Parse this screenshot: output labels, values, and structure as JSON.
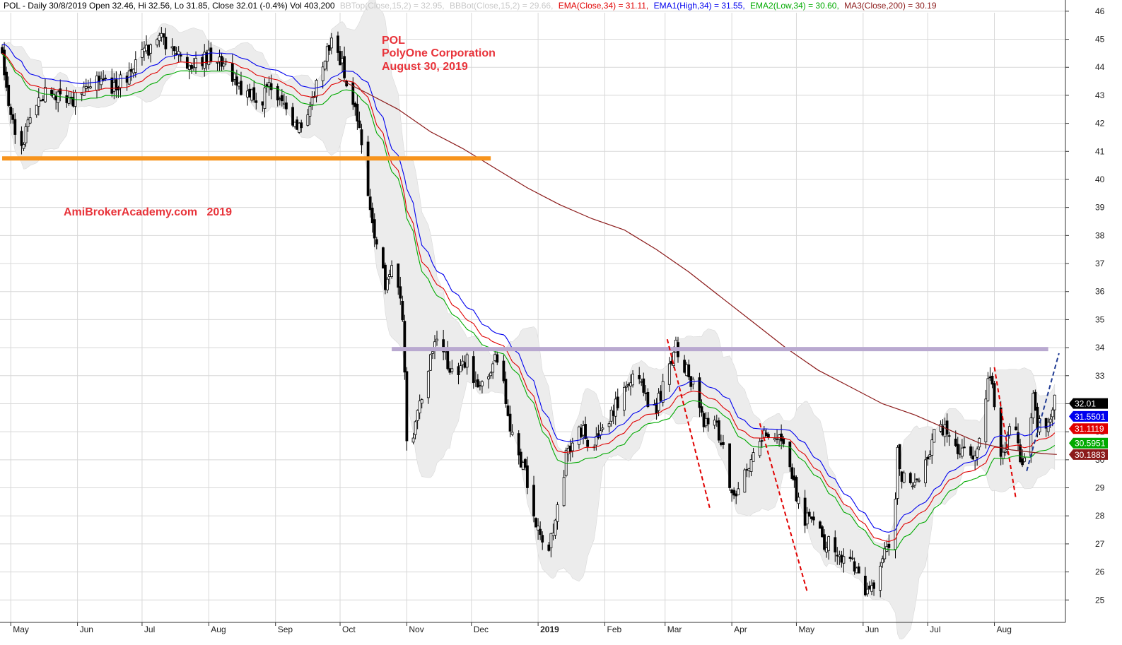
{
  "header": {
    "title": "POL - Daily 30/8/2019 Open 32.46, Hi 32.56, Lo 31.85, Close 32.01 (-0.4%) Vol 403,200",
    "bbtop": "BBTop(Close,15,2) = 32.95,",
    "bbbot": "BBBot(Close,15,2) = 29.66,",
    "ema": "EMA(Close,34) = 31.11,",
    "ema1": "EMA1(High,34) = 31.55,",
    "ema2": "EMA2(Low,34) = 30.60,",
    "ma3": "MA3(Close,200) = 30.19"
  },
  "annotations": {
    "ticker": "POL",
    "company": "PolyOne Corporation",
    "date": "August 30, 2019",
    "watermark": "AmiBrokerAcademy.com   2019"
  },
  "colors": {
    "candle": "#000000",
    "ema_close": "#e00000",
    "ema_high": "#0000ee",
    "ema_low": "#00aa00",
    "ma200": "#8b1a1a",
    "bollinger_fill": "#ececec",
    "support": "#f7941d",
    "resistance": "#b9a9d0",
    "trend_down": "#e00000",
    "trend_up": "#1f3a93",
    "bbtop_text": "#c8c8c8",
    "grid": "#d8d8d8"
  },
  "badges": [
    {
      "label": "32.01",
      "value": 32.01,
      "color": "#000000"
    },
    {
      "label": "31.5501",
      "value": 31.5501,
      "color": "#0000ee"
    },
    {
      "label": "31.1119",
      "value": 31.1119,
      "color": "#e00000"
    },
    {
      "label": "30.5951",
      "value": 30.5951,
      "color": "#00aa00"
    },
    {
      "label": "30.1883",
      "value": 30.1883,
      "color": "#8b1a1a"
    }
  ],
  "chart_data": {
    "type": "candlestick",
    "ylim": [
      24.2,
      46.4
    ],
    "yticks": [
      25,
      26,
      27,
      28,
      29,
      30,
      31,
      32,
      33,
      34,
      35,
      36,
      37,
      38,
      39,
      40,
      41,
      42,
      43,
      44,
      45,
      46
    ],
    "grid": true,
    "x_month_labels": [
      {
        "label": "May",
        "day": 0,
        "bold": false
      },
      {
        "label": "Jun",
        "day": 31,
        "bold": false
      },
      {
        "label": "Jul",
        "day": 61,
        "bold": false
      },
      {
        "label": "Aug",
        "day": 92,
        "bold": false
      },
      {
        "label": "Sep",
        "day": 123,
        "bold": false
      },
      {
        "label": "Oct",
        "day": 153,
        "bold": false
      },
      {
        "label": "Nov",
        "day": 184,
        "bold": false
      },
      {
        "label": "Dec",
        "day": 214,
        "bold": false
      },
      {
        "label": "2019",
        "day": 245,
        "bold": true
      },
      {
        "label": "Feb",
        "day": 276,
        "bold": false
      },
      {
        "label": "Mar",
        "day": 304,
        "bold": false
      },
      {
        "label": "Apr",
        "day": 335,
        "bold": false
      },
      {
        "label": "May",
        "day": 365,
        "bold": false
      },
      {
        "label": "Jun",
        "day": 396,
        "bold": false
      },
      {
        "label": "Jul",
        "day": 426,
        "bold": false
      },
      {
        "label": "Aug",
        "day": 457,
        "bold": false
      }
    ],
    "x_range_days": [
      -5,
      490
    ],
    "close_path": [
      [
        -4,
        44.6
      ],
      [
        0,
        42.2
      ],
      [
        5,
        41.0
      ],
      [
        10,
        42.6
      ],
      [
        18,
        43.2
      ],
      [
        25,
        42.7
      ],
      [
        32,
        43.0
      ],
      [
        40,
        43.6
      ],
      [
        48,
        43.3
      ],
      [
        55,
        43.8
      ],
      [
        62,
        44.5
      ],
      [
        70,
        45.1
      ],
      [
        78,
        44.3
      ],
      [
        85,
        44.1
      ],
      [
        92,
        44.4
      ],
      [
        100,
        44.0
      ],
      [
        108,
        43.2
      ],
      [
        116,
        42.8
      ],
      [
        122,
        43.4
      ],
      [
        128,
        42.4
      ],
      [
        134,
        41.9
      ],
      [
        140,
        42.8
      ],
      [
        146,
        44.4
      ],
      [
        150,
        45.1
      ],
      [
        155,
        43.8
      ],
      [
        158,
        43.1
      ],
      [
        162,
        41.9
      ],
      [
        165,
        40.3
      ],
      [
        168,
        38.3
      ],
      [
        171,
        37.4
      ],
      [
        174,
        36.2
      ],
      [
        177,
        36.9
      ],
      [
        180,
        36.0
      ],
      [
        182,
        35.0
      ],
      [
        184,
        30.8
      ],
      [
        186,
        30.4
      ],
      [
        188,
        31.5
      ],
      [
        191,
        32.4
      ],
      [
        195,
        33.6
      ],
      [
        199,
        34.6
      ],
      [
        203,
        33.3
      ],
      [
        207,
        32.9
      ],
      [
        212,
        33.6
      ],
      [
        216,
        32.8
      ],
      [
        220,
        32.6
      ],
      [
        224,
        33.5
      ],
      [
        228,
        33.8
      ],
      [
        230,
        32.0
      ],
      [
        233,
        30.8
      ],
      [
        236,
        30.0
      ],
      [
        239,
        29.5
      ],
      [
        241,
        28.4
      ],
      [
        244,
        27.8
      ],
      [
        247,
        27.2
      ],
      [
        249,
        26.5
      ],
      [
        251,
        27.2
      ],
      [
        253,
        28.0
      ],
      [
        256,
        29.0
      ],
      [
        258,
        30.1
      ],
      [
        262,
        30.8
      ],
      [
        266,
        31.0
      ],
      [
        270,
        30.4
      ],
      [
        275,
        30.9
      ],
      [
        279,
        31.6
      ],
      [
        283,
        32.3
      ],
      [
        287,
        32.7
      ],
      [
        291,
        33.1
      ],
      [
        294,
        32.3
      ],
      [
        297,
        31.7
      ],
      [
        300,
        31.9
      ],
      [
        303,
        32.6
      ],
      [
        306,
        33.4
      ],
      [
        309,
        34.0
      ],
      [
        312,
        33.5
      ],
      [
        315,
        33.0
      ],
      [
        318,
        32.6
      ],
      [
        321,
        31.5
      ],
      [
        324,
        31.1
      ],
      [
        327,
        31.3
      ],
      [
        330,
        30.8
      ],
      [
        333,
        29.3
      ],
      [
        336,
        28.8
      ],
      [
        339,
        29.3
      ],
      [
        342,
        29.8
      ],
      [
        345,
        30.2
      ],
      [
        348,
        30.6
      ],
      [
        351,
        30.9
      ],
      [
        354,
        31.1
      ],
      [
        357,
        30.8
      ],
      [
        360,
        30.4
      ],
      [
        363,
        29.3
      ],
      [
        366,
        28.4
      ],
      [
        369,
        27.8
      ],
      [
        372,
        27.9
      ],
      [
        375,
        27.6
      ],
      [
        378,
        27.0
      ],
      [
        381,
        27.3
      ],
      [
        384,
        26.6
      ],
      [
        387,
        26.3
      ],
      [
        390,
        26.6
      ],
      [
        393,
        26.1
      ],
      [
        396,
        25.5
      ],
      [
        399,
        25.2
      ],
      [
        402,
        25.8
      ],
      [
        405,
        26.4
      ],
      [
        408,
        27.0
      ],
      [
        410,
        27.5
      ],
      [
        412,
        30.2
      ],
      [
        414,
        29.5
      ],
      [
        417,
        29.1
      ],
      [
        420,
        29.3
      ],
      [
        423,
        29.2
      ],
      [
        426,
        30.0
      ],
      [
        429,
        30.9
      ],
      [
        432,
        31.2
      ],
      [
        435,
        31.0
      ],
      [
        438,
        30.6
      ],
      [
        441,
        30.3
      ],
      [
        444,
        30.2
      ],
      [
        447,
        30.0
      ],
      [
        450,
        30.5
      ],
      [
        453,
        32.4
      ],
      [
        455,
        33.0
      ],
      [
        457,
        32.1
      ],
      [
        459,
        30.5
      ],
      [
        461,
        30.1
      ],
      [
        463,
        31.0
      ],
      [
        465,
        31.4
      ],
      [
        467,
        30.8
      ],
      [
        469,
        30.2
      ],
      [
        471,
        29.9
      ],
      [
        473,
        31.1
      ],
      [
        475,
        32.3
      ],
      [
        477,
        31.3
      ],
      [
        479,
        31.6
      ],
      [
        481,
        31.1
      ],
      [
        483,
        31.7
      ],
      [
        485,
        32.4
      ],
      [
        486,
        32.01
      ]
    ],
    "ma200_path": [
      [
        152,
        43.6
      ],
      [
        165,
        43.1
      ],
      [
        180,
        42.5
      ],
      [
        195,
        41.7
      ],
      [
        210,
        41.1
      ],
      [
        225,
        40.4
      ],
      [
        240,
        39.7
      ],
      [
        255,
        39.1
      ],
      [
        270,
        38.6
      ],
      [
        285,
        38.2
      ],
      [
        300,
        37.5
      ],
      [
        315,
        36.7
      ],
      [
        330,
        35.8
      ],
      [
        345,
        34.9
      ],
      [
        360,
        34.0
      ],
      [
        375,
        33.2
      ],
      [
        390,
        32.6
      ],
      [
        405,
        32.0
      ],
      [
        420,
        31.6
      ],
      [
        435,
        31.1
      ],
      [
        450,
        30.6
      ],
      [
        465,
        30.35
      ],
      [
        480,
        30.22
      ],
      [
        486,
        30.19
      ]
    ],
    "support_line": {
      "value": 40.75,
      "from_day": -4,
      "to_day": 223
    },
    "resistance_line": {
      "value": 33.95,
      "from_day": 177,
      "to_day": 482
    },
    "trend_lines": [
      {
        "from": [
          305,
          34.3
        ],
        "to": [
          325,
          28.2
        ],
        "style": "down"
      },
      {
        "from": [
          348,
          31.3
        ],
        "to": [
          370,
          25.3
        ],
        "style": "down"
      },
      {
        "from": [
          457,
          33.3
        ],
        "to": [
          467,
          28.6
        ],
        "style": "down"
      },
      {
        "from": [
          472,
          29.6
        ],
        "to": [
          487,
          33.8
        ],
        "style": "up"
      }
    ]
  }
}
